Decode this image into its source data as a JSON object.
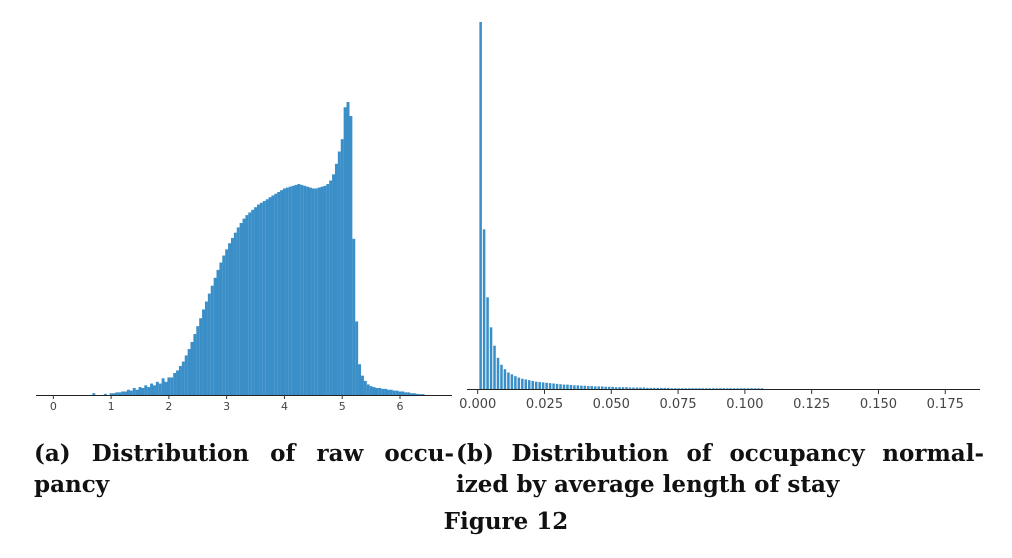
{
  "chart_data": [
    {
      "type": "bar",
      "subfigure": "a",
      "xlim": [
        -0.3,
        6.9
      ],
      "ylim": [
        0,
        1
      ],
      "xticks": [
        0,
        1,
        2,
        3,
        4,
        5,
        6
      ],
      "tick_labels": [
        "0",
        "1",
        "2",
        "3",
        "4",
        "5",
        "6"
      ],
      "bar_color": "#3a8fc8",
      "bin_width": 0.0625,
      "x": [
        0.7,
        0.9,
        1.0,
        1.05,
        1.1,
        1.15,
        1.2,
        1.25,
        1.3,
        1.35,
        1.4,
        1.45,
        1.5,
        1.55,
        1.6,
        1.65,
        1.7,
        1.75,
        1.8,
        1.85,
        1.9,
        1.95,
        2.0,
        2.05,
        2.1,
        2.15,
        2.2,
        2.25,
        2.3,
        2.35,
        2.4,
        2.45,
        2.5,
        2.55,
        2.6,
        2.65,
        2.7,
        2.75,
        2.8,
        2.85,
        2.9,
        2.95,
        3.0,
        3.05,
        3.1,
        3.15,
        3.2,
        3.25,
        3.3,
        3.35,
        3.4,
        3.45,
        3.5,
        3.55,
        3.6,
        3.65,
        3.7,
        3.75,
        3.8,
        3.85,
        3.9,
        3.95,
        4.0,
        4.05,
        4.1,
        4.15,
        4.2,
        4.25,
        4.3,
        4.35,
        4.4,
        4.45,
        4.5,
        4.55,
        4.6,
        4.65,
        4.7,
        4.75,
        4.8,
        4.85,
        4.9,
        4.95,
        5.0,
        5.05,
        5.1,
        5.15,
        5.2,
        5.25,
        5.3,
        5.35,
        5.4,
        5.45,
        5.5,
        5.55,
        5.6,
        5.65,
        5.7,
        5.75,
        5.8,
        5.85,
        5.9,
        5.95,
        6.0,
        6.05,
        6.1,
        6.15,
        6.2,
        6.25,
        6.3,
        6.35,
        6.4
      ],
      "values": [
        0.006,
        0.004,
        0.006,
        0.006,
        0.009,
        0.009,
        0.012,
        0.012,
        0.018,
        0.015,
        0.024,
        0.018,
        0.027,
        0.024,
        0.033,
        0.027,
        0.039,
        0.033,
        0.045,
        0.039,
        0.057,
        0.045,
        0.06,
        0.06,
        0.075,
        0.084,
        0.099,
        0.114,
        0.135,
        0.157,
        0.181,
        0.208,
        0.235,
        0.262,
        0.292,
        0.319,
        0.346,
        0.373,
        0.4,
        0.427,
        0.452,
        0.476,
        0.497,
        0.518,
        0.536,
        0.554,
        0.572,
        0.587,
        0.602,
        0.614,
        0.623,
        0.632,
        0.641,
        0.65,
        0.656,
        0.662,
        0.668,
        0.675,
        0.681,
        0.687,
        0.693,
        0.699,
        0.705,
        0.708,
        0.711,
        0.714,
        0.717,
        0.72,
        0.717,
        0.714,
        0.711,
        0.708,
        0.705,
        0.705,
        0.708,
        0.711,
        0.714,
        0.72,
        0.732,
        0.753,
        0.789,
        0.831,
        0.873,
        0.982,
        1.0,
        0.952,
        0.533,
        0.251,
        0.105,
        0.066,
        0.048,
        0.036,
        0.03,
        0.027,
        0.024,
        0.024,
        0.021,
        0.021,
        0.018,
        0.018,
        0.015,
        0.015,
        0.012,
        0.012,
        0.009,
        0.009,
        0.006,
        0.006,
        0.004,
        0.003,
        0.003
      ]
    },
    {
      "type": "bar",
      "subfigure": "b",
      "xlim": [
        -0.004,
        0.188
      ],
      "ylim": [
        0,
        1
      ],
      "xticks": [
        0.0,
        0.025,
        0.05,
        0.075,
        0.1,
        0.125,
        0.15,
        0.175
      ],
      "tick_labels": [
        "0.000",
        "0.025",
        "0.050",
        "0.075",
        "0.100",
        "0.125",
        "0.150",
        "0.175"
      ],
      "bar_color": "#3a8fc8",
      "bin_width": 0.00115,
      "x": [
        0.0011,
        0.0024,
        0.0037,
        0.005,
        0.0063,
        0.0076,
        0.0089,
        0.0102,
        0.0115,
        0.0128,
        0.0141,
        0.0154,
        0.0167,
        0.018,
        0.0193,
        0.0206,
        0.0219,
        0.0232,
        0.0245,
        0.0258,
        0.0271,
        0.0284,
        0.0297,
        0.031,
        0.0323,
        0.0336,
        0.0349,
        0.0362,
        0.0375,
        0.0388,
        0.0401,
        0.0414,
        0.0427,
        0.044,
        0.0453,
        0.0466,
        0.0479,
        0.0492,
        0.0505,
        0.0518,
        0.0531,
        0.0544,
        0.0557,
        0.057,
        0.0583,
        0.0596,
        0.0609,
        0.0622,
        0.0635,
        0.0648,
        0.0661,
        0.0674,
        0.0687,
        0.07,
        0.0713,
        0.0726,
        0.0739,
        0.0752,
        0.0765,
        0.0778,
        0.0791,
        0.0804,
        0.0817,
        0.083,
        0.0843,
        0.0856,
        0.0869,
        0.0882,
        0.0895,
        0.0908,
        0.0921,
        0.0934,
        0.0947,
        0.096,
        0.0973,
        0.0986,
        0.0999,
        0.1012,
        0.1025,
        0.1038,
        0.1051,
        0.1064
      ],
      "values": [
        1.0,
        0.435,
        0.25,
        0.168,
        0.118,
        0.085,
        0.066,
        0.054,
        0.045,
        0.04,
        0.035,
        0.031,
        0.028,
        0.026,
        0.024,
        0.022,
        0.02,
        0.019,
        0.018,
        0.017,
        0.016,
        0.015,
        0.014,
        0.013,
        0.012,
        0.012,
        0.011,
        0.01,
        0.01,
        0.009,
        0.009,
        0.008,
        0.008,
        0.007,
        0.007,
        0.007,
        0.006,
        0.006,
        0.006,
        0.005,
        0.005,
        0.005,
        0.005,
        0.004,
        0.004,
        0.004,
        0.004,
        0.004,
        0.003,
        0.003,
        0.003,
        0.003,
        0.003,
        0.003,
        0.003,
        0.002,
        0.002,
        0.002,
        0.002,
        0.002,
        0.002,
        0.002,
        0.002,
        0.002,
        0.002,
        0.002,
        0.002,
        0.002,
        0.002,
        0.002,
        0.002,
        0.002,
        0.002,
        0.002,
        0.002,
        0.002,
        0.002,
        0.002,
        0.002,
        0.002,
        0.002,
        0.002
      ]
    }
  ],
  "captions": {
    "a": "(a) Distribution of raw occu-pancy",
    "b": "(b) Distribution of occupancy normal-ized by average length of stay",
    "figure": "Figure 12"
  }
}
